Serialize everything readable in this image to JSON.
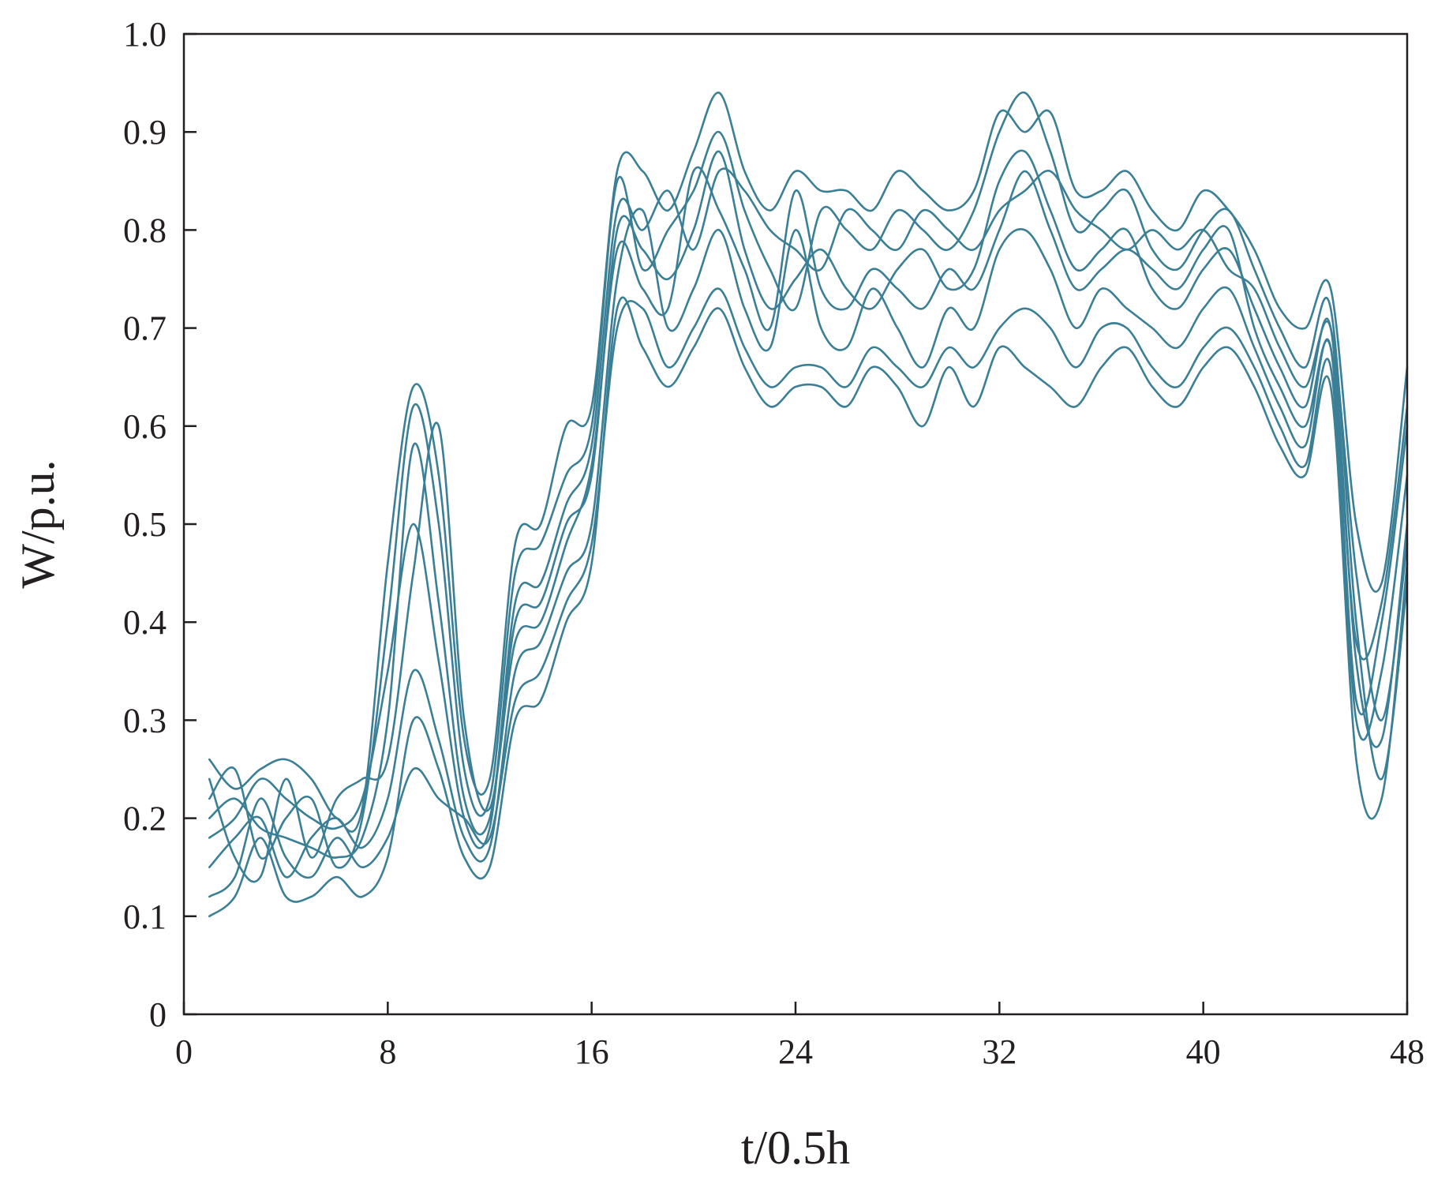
{
  "chart_data": {
    "type": "line",
    "title": "",
    "xlabel": "t/0.5h",
    "ylabel": "W/p.u.",
    "xlim": [
      0,
      48
    ],
    "ylim": [
      0,
      1.0
    ],
    "xticks": [
      0,
      8,
      16,
      24,
      32,
      40,
      48
    ],
    "yticks": [
      0,
      0.1,
      0.2,
      0.3,
      0.4,
      0.5,
      0.6,
      0.7,
      0.8,
      0.9,
      1.0
    ],
    "xtick_labels": [
      "0",
      "8",
      "16",
      "24",
      "32",
      "40",
      "48"
    ],
    "ytick_labels": [
      "0",
      "0.1",
      "0.2",
      "0.3",
      "0.4",
      "0.5",
      "0.6",
      "0.7",
      "0.8",
      "0.9",
      "1.0"
    ],
    "grid": false,
    "legend": "none",
    "series_color": "#3a7f96",
    "x": [
      1,
      2,
      3,
      4,
      5,
      6,
      7,
      8,
      9,
      10,
      11,
      12,
      13,
      14,
      15,
      16,
      17,
      18,
      19,
      20,
      21,
      22,
      23,
      24,
      25,
      26,
      27,
      28,
      29,
      30,
      31,
      32,
      33,
      34,
      35,
      36,
      37,
      38,
      39,
      40,
      41,
      42,
      43,
      44,
      45,
      46,
      47,
      48
    ],
    "series": [
      {
        "values": [
          0.2,
          0.22,
          0.19,
          0.18,
          0.17,
          0.16,
          0.18,
          0.3,
          0.58,
          0.42,
          0.22,
          0.2,
          0.4,
          0.42,
          0.5,
          0.55,
          0.8,
          0.78,
          0.75,
          0.8,
          0.88,
          0.78,
          0.72,
          0.75,
          0.78,
          0.74,
          0.72,
          0.76,
          0.78,
          0.74,
          0.76,
          0.85,
          0.88,
          0.82,
          0.76,
          0.78,
          0.8,
          0.74,
          0.72,
          0.76,
          0.78,
          0.72,
          0.66,
          0.62,
          0.7,
          0.36,
          0.28,
          0.5
        ]
      },
      {
        "values": [
          0.15,
          0.18,
          0.2,
          0.14,
          0.18,
          0.2,
          0.17,
          0.22,
          0.35,
          0.28,
          0.18,
          0.17,
          0.35,
          0.38,
          0.45,
          0.5,
          0.75,
          0.82,
          0.7,
          0.74,
          0.8,
          0.72,
          0.68,
          0.8,
          0.7,
          0.68,
          0.74,
          0.7,
          0.66,
          0.72,
          0.7,
          0.78,
          0.8,
          0.76,
          0.7,
          0.74,
          0.72,
          0.7,
          0.68,
          0.72,
          0.74,
          0.68,
          0.62,
          0.58,
          0.68,
          0.32,
          0.4,
          0.6
        ]
      },
      {
        "values": [
          0.22,
          0.25,
          0.16,
          0.2,
          0.22,
          0.15,
          0.2,
          0.4,
          0.62,
          0.5,
          0.25,
          0.22,
          0.45,
          0.48,
          0.55,
          0.6,
          0.85,
          0.76,
          0.8,
          0.84,
          0.9,
          0.82,
          0.76,
          0.72,
          0.82,
          0.8,
          0.78,
          0.82,
          0.8,
          0.78,
          0.82,
          0.9,
          0.94,
          0.88,
          0.8,
          0.82,
          0.84,
          0.78,
          0.76,
          0.8,
          0.82,
          0.76,
          0.7,
          0.66,
          0.72,
          0.4,
          0.24,
          0.44
        ]
      },
      {
        "values": [
          0.12,
          0.14,
          0.22,
          0.16,
          0.14,
          0.18,
          0.15,
          0.18,
          0.25,
          0.22,
          0.2,
          0.18,
          0.32,
          0.35,
          0.42,
          0.48,
          0.7,
          0.72,
          0.66,
          0.7,
          0.74,
          0.68,
          0.64,
          0.66,
          0.66,
          0.64,
          0.68,
          0.66,
          0.64,
          0.68,
          0.66,
          0.7,
          0.72,
          0.7,
          0.66,
          0.7,
          0.7,
          0.66,
          0.64,
          0.68,
          0.7,
          0.66,
          0.6,
          0.56,
          0.66,
          0.3,
          0.35,
          0.55
        ]
      },
      {
        "values": [
          0.18,
          0.2,
          0.24,
          0.22,
          0.2,
          0.19,
          0.22,
          0.35,
          0.5,
          0.36,
          0.2,
          0.19,
          0.42,
          0.44,
          0.52,
          0.58,
          0.82,
          0.8,
          0.84,
          0.78,
          0.86,
          0.84,
          0.8,
          0.78,
          0.76,
          0.82,
          0.8,
          0.78,
          0.82,
          0.8,
          0.78,
          0.82,
          0.84,
          0.86,
          0.82,
          0.8,
          0.78,
          0.8,
          0.78,
          0.8,
          0.76,
          0.74,
          0.68,
          0.64,
          0.7,
          0.45,
          0.3,
          0.48
        ]
      },
      {
        "values": [
          0.24,
          0.16,
          0.14,
          0.24,
          0.16,
          0.22,
          0.24,
          0.26,
          0.45,
          0.6,
          0.3,
          0.21,
          0.38,
          0.4,
          0.48,
          0.56,
          0.78,
          0.74,
          0.72,
          0.86,
          0.82,
          0.76,
          0.7,
          0.84,
          0.74,
          0.72,
          0.76,
          0.74,
          0.72,
          0.76,
          0.74,
          0.8,
          0.86,
          0.8,
          0.74,
          0.76,
          0.78,
          0.76,
          0.74,
          0.78,
          0.8,
          0.7,
          0.64,
          0.6,
          0.68,
          0.38,
          0.42,
          0.62
        ]
      },
      {
        "values": [
          0.1,
          0.12,
          0.18,
          0.12,
          0.12,
          0.14,
          0.12,
          0.16,
          0.3,
          0.25,
          0.16,
          0.15,
          0.3,
          0.32,
          0.4,
          0.46,
          0.72,
          0.68,
          0.64,
          0.68,
          0.72,
          0.66,
          0.62,
          0.64,
          0.64,
          0.62,
          0.66,
          0.64,
          0.6,
          0.66,
          0.62,
          0.68,
          0.66,
          0.64,
          0.62,
          0.66,
          0.68,
          0.64,
          0.62,
          0.66,
          0.68,
          0.64,
          0.58,
          0.55,
          0.64,
          0.26,
          0.22,
          0.46
        ]
      },
      {
        "values": [
          0.26,
          0.23,
          0.25,
          0.26,
          0.24,
          0.2,
          0.21,
          0.46,
          0.64,
          0.55,
          0.28,
          0.24,
          0.48,
          0.5,
          0.6,
          0.62,
          0.86,
          0.86,
          0.82,
          0.88,
          0.94,
          0.86,
          0.82,
          0.86,
          0.84,
          0.84,
          0.82,
          0.86,
          0.84,
          0.82,
          0.84,
          0.92,
          0.9,
          0.92,
          0.84,
          0.84,
          0.86,
          0.82,
          0.8,
          0.84,
          0.82,
          0.78,
          0.72,
          0.7,
          0.74,
          0.5,
          0.44,
          0.66
        ]
      }
    ]
  }
}
